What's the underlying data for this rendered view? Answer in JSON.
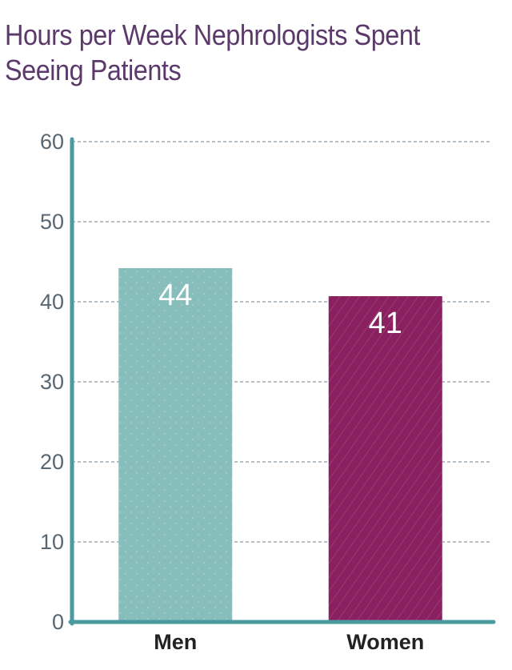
{
  "chart_data": {
    "type": "bar",
    "title": [
      "Hours per Week Nephrologists Spent",
      "Seeing Patients"
    ],
    "categories": [
      "Men",
      "Women"
    ],
    "values": [
      44.2,
      40.7
    ],
    "value_labels": [
      "44",
      "41"
    ],
    "ylim": [
      0,
      60
    ],
    "yticks": [
      "0",
      "10",
      "20",
      "30",
      "40",
      "50",
      "60"
    ],
    "grid": true,
    "colors": {
      "title": "#5b3a6b",
      "axis": "#4a9aa0",
      "grid": "#6e7f8c",
      "tick_label": "#5a6670",
      "category_label": "#222222",
      "value_label": "#ffffff",
      "bars": [
        "#87bdba",
        "#8b2060"
      ]
    }
  }
}
